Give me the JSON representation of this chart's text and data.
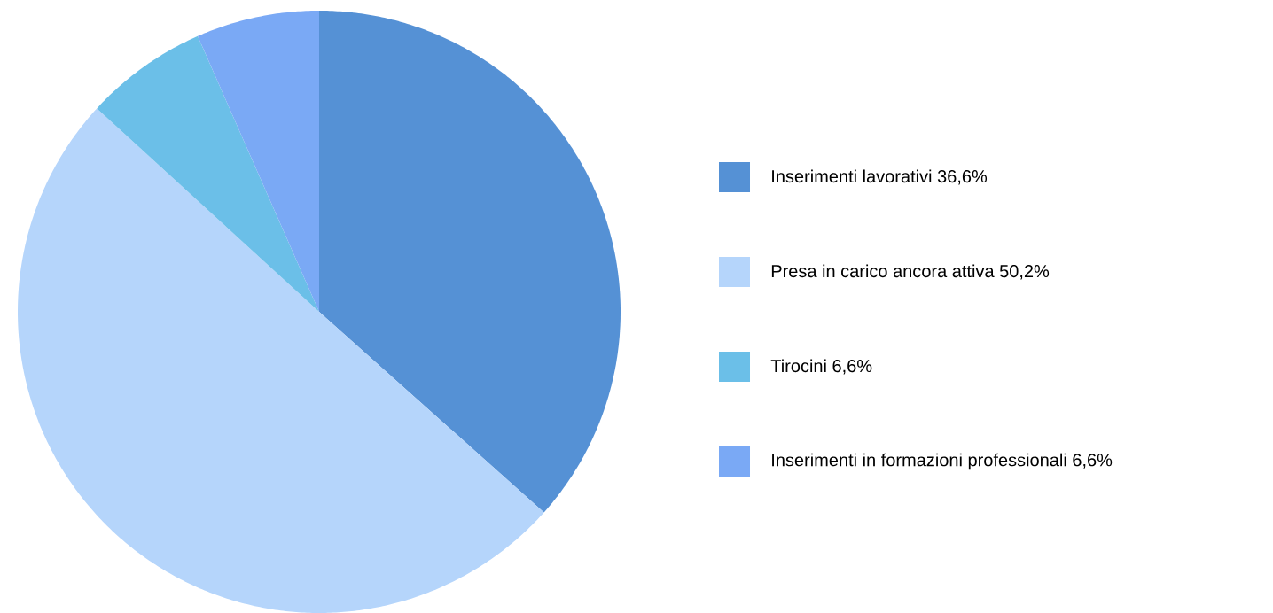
{
  "chart_data": {
    "type": "pie",
    "categories": [
      "Inserimenti lavorativi 36,6%",
      "Presa in carico ancora attiva 50,2%",
      "Tirocini 6,6%",
      "Inserimenti in formazioni professionali 6,6%"
    ],
    "values": [
      36.6,
      50.2,
      6.6,
      6.6
    ],
    "colors": [
      "#5591d5",
      "#b5d5fb",
      "#6bbfe8",
      "#7aa9f5"
    ],
    "legend": "right"
  }
}
